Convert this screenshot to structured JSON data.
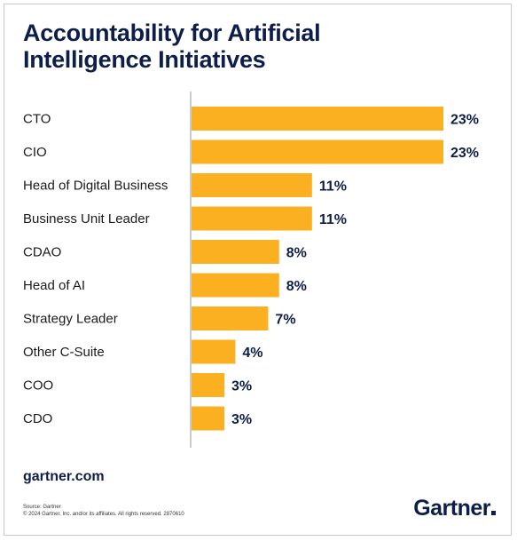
{
  "title": "Accountability for Artificial Intelligence Initiatives",
  "footer": {
    "site": "gartner.com",
    "source_line": "Source: Gartner",
    "copyright_line": "© 2024 Gartner, Inc. and/or its affiliates. All rights reserved. 2870610",
    "brand": "Gartner"
  },
  "colors": {
    "bar": "#FBB022",
    "title": "#0E1E4A",
    "label": "#1A1A1A",
    "value_label": "#0E1E4A",
    "axis": "#999999"
  },
  "chart_data": {
    "type": "bar",
    "orientation": "horizontal",
    "categories": [
      "CTO",
      "CIO",
      "Head of Digital Business",
      "Business Unit Leader",
      "CDAO",
      "Head of AI",
      "Strategy Leader",
      "Other C-Suite",
      "COO",
      "CDO"
    ],
    "values": [
      23,
      23,
      11,
      11,
      8,
      8,
      7,
      4,
      3,
      3
    ],
    "value_labels": [
      "23%",
      "23%",
      "11%",
      "11%",
      "8%",
      "8%",
      "7%",
      "4%",
      "3%",
      "3%"
    ],
    "unit": "%",
    "xlim": [
      0,
      23
    ],
    "grid": false,
    "legend": "none"
  }
}
